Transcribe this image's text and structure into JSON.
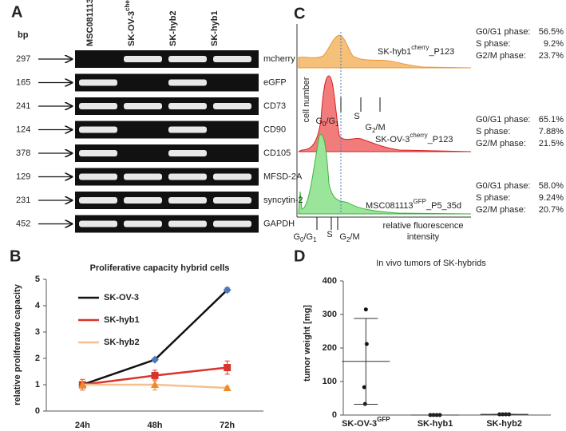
{
  "panel_labels": [
    "A",
    "B",
    "C",
    "D"
  ],
  "gel": {
    "bp_header": "bp",
    "lanes": [
      [
        "MSC081113",
        "GFP"
      ],
      [
        "SK-OV-3",
        "cherry"
      ],
      [
        "SK-hyb2"
      ],
      [
        "SK-hyb1"
      ]
    ],
    "rows": [
      {
        "bp": "297",
        "gene": "mcherry",
        "bands": [
          false,
          true,
          true,
          true
        ]
      },
      {
        "bp": "165",
        "gene": "eGFP",
        "bands": [
          true,
          false,
          true,
          false
        ]
      },
      {
        "bp": "241",
        "gene": "CD73",
        "bands": [
          true,
          true,
          true,
          true
        ]
      },
      {
        "bp": "124",
        "gene": "CD90",
        "bands": [
          true,
          false,
          true,
          false
        ]
      },
      {
        "bp": "378",
        "gene": "CD105",
        "bands": [
          true,
          false,
          true,
          false
        ]
      },
      {
        "bp": "129",
        "gene": "MFSD-2A",
        "bands": [
          true,
          true,
          true,
          true
        ]
      },
      {
        "bp": "231",
        "gene": "syncytin-2",
        "bands": [
          true,
          true,
          true,
          true
        ]
      },
      {
        "bp": "452",
        "gene": "GAPDH",
        "bands": [
          true,
          true,
          true,
          true
        ]
      }
    ]
  },
  "flow": {
    "y_label": "cell number",
    "x_label_lines": [
      "relative fluorescence",
      "intensity"
    ],
    "samples": [
      {
        "name": [
          "SK-hyb1",
          "cherry",
          "_P123"
        ],
        "stats": [
          {
            "label": "G0/G1 phase:",
            "value": "56.5%"
          },
          {
            "label": "S phase:",
            "value": "9.2%"
          },
          {
            "label": "G2/M phase:",
            "value": "23.7%"
          }
        ]
      },
      {
        "name": [
          "SK-OV-3",
          "cherry",
          "_P123"
        ],
        "stats": [
          {
            "label": "G0/G1 phase:",
            "value": "65.1%"
          },
          {
            "label": "S phase:",
            "value": "7.88%"
          },
          {
            "label": "G2/M phase:",
            "value": "21.5%"
          }
        ]
      },
      {
        "name": [
          "MSC081113",
          "GFP",
          "_P5_35d"
        ],
        "stats": [
          {
            "label": "G0/G1 phase:",
            "value": "58.0%"
          },
          {
            "label": "S phase:",
            "value": "9.24%"
          },
          {
            "label": "G2/M phase:",
            "value": "20.7%"
          }
        ]
      }
    ],
    "markers_top": [
      [
        "G",
        "0",
        "/G",
        "1"
      ],
      [
        "S"
      ],
      [
        "G",
        "2",
        "/M"
      ]
    ],
    "markers_bottom": [
      [
        "G",
        "0",
        "/G",
        "1"
      ],
      [
        "S"
      ],
      [
        "G",
        "2",
        "/M"
      ]
    ]
  },
  "chart_data": [
    {
      "type": "line",
      "title": "Proliferative capacity hybrid cells",
      "y_label": "relative proliferative capacity",
      "categories": [
        "24h",
        "48h",
        "72h"
      ],
      "ylim": [
        0,
        5
      ],
      "yticks": [
        0,
        1,
        2,
        3,
        4,
        5
      ],
      "series": [
        {
          "name": "SK-OV-3",
          "color": "#111111",
          "marker_color": "#4a78b8",
          "marker": "diamond",
          "values": [
            1,
            1.95,
            4.6
          ],
          "errors": [
            0.2,
            0.05,
            0.08
          ]
        },
        {
          "name": "SK-hyb1",
          "color": "#d9342b",
          "marker_color": "#d9342b",
          "marker": "square",
          "values": [
            1,
            1.35,
            1.65
          ],
          "errors": [
            0.2,
            0.2,
            0.25
          ]
        },
        {
          "name": "SK-hyb2",
          "color": "#f6c08e",
          "marker_color": "#f08a24",
          "marker": "triangle",
          "values": [
            1,
            1,
            0.88
          ],
          "errors": [
            0.2,
            0.2,
            0.05
          ]
        }
      ]
    },
    {
      "type": "scatter",
      "title": "In vivo tumors of SK-hybrids",
      "y_label": "tumor weight [mg]",
      "category_label_parts": [
        [
          "SK-OV-3",
          "GFP"
        ],
        [
          "SK-hyb1"
        ],
        [
          "SK-hyb2"
        ]
      ],
      "ylim": [
        0,
        400
      ],
      "yticks": [
        0,
        100,
        200,
        300,
        400
      ],
      "points": [
        [
          315,
          212,
          83,
          33
        ],
        [
          0,
          0,
          0,
          0
        ],
        [
          2,
          2,
          2,
          2
        ]
      ],
      "mean": [
        160,
        0,
        2
      ],
      "sd": [
        128,
        0,
        0
      ]
    }
  ]
}
